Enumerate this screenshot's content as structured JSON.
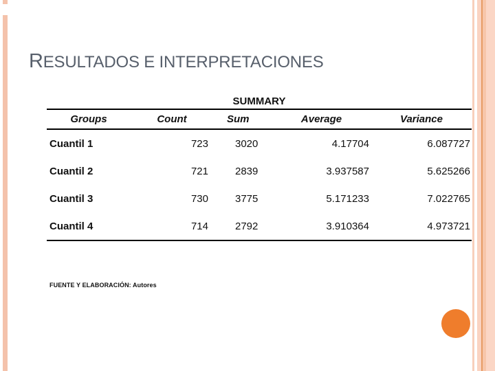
{
  "slide": {
    "title": "RESULTADOS E INTERPRETACIONES",
    "footnote": "FUENTE Y ELABORACIÓN: Autores"
  },
  "table": {
    "caption": "SUMMARY",
    "columns": [
      "Groups",
      "Count",
      "Sum",
      "Average",
      "Variance"
    ],
    "rows": [
      {
        "group": "Cuantil 1",
        "count": "723",
        "sum": "3020",
        "average": "4.17704",
        "variance": "6.087727"
      },
      {
        "group": "Cuantil 2",
        "count": "721",
        "sum": "2839",
        "average": "3.937587",
        "variance": "5.625266"
      },
      {
        "group": "Cuantil 3",
        "count": "730",
        "sum": "3775",
        "average": "5.171233",
        "variance": "7.022765"
      },
      {
        "group": "Cuantil 4",
        "count": "714",
        "sum": "2792",
        "average": "3.910364",
        "variance": "4.973721"
      }
    ]
  },
  "colors": {
    "accent_salmon": "#f4c2ab",
    "accent_orange": "#ef7d2c",
    "title_gray": "#575f6b"
  }
}
